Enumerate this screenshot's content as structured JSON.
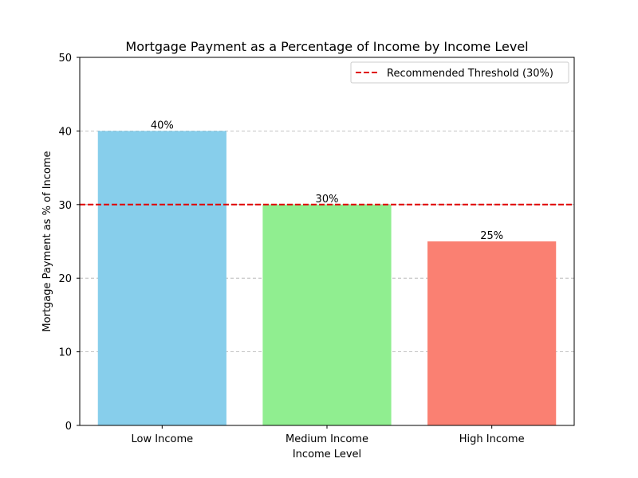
{
  "chart_data": {
    "type": "bar",
    "title": "Mortgage Payment as a Percentage of Income by Income Level",
    "xlabel": "Income Level",
    "ylabel": "Mortgage Payment as % of Income",
    "categories": [
      "Low Income",
      "Medium Income",
      "High Income"
    ],
    "values": [
      40,
      30,
      25
    ],
    "data_labels": [
      "40%",
      "30%",
      "25%"
    ],
    "colors": [
      "#87ceeb",
      "#90ee90",
      "#fa8072"
    ],
    "ylim": [
      0,
      50
    ],
    "yticks": [
      0,
      10,
      20,
      30,
      40,
      50
    ],
    "ytick_labels": [
      "0",
      "10",
      "20",
      "30",
      "40",
      "50"
    ],
    "grid": "y-axis dashed",
    "threshold": {
      "value": 30,
      "label": "Recommended Threshold (30%)",
      "color": "#e00000",
      "style": "dashed"
    },
    "legend": {
      "placement": "top-right"
    }
  }
}
